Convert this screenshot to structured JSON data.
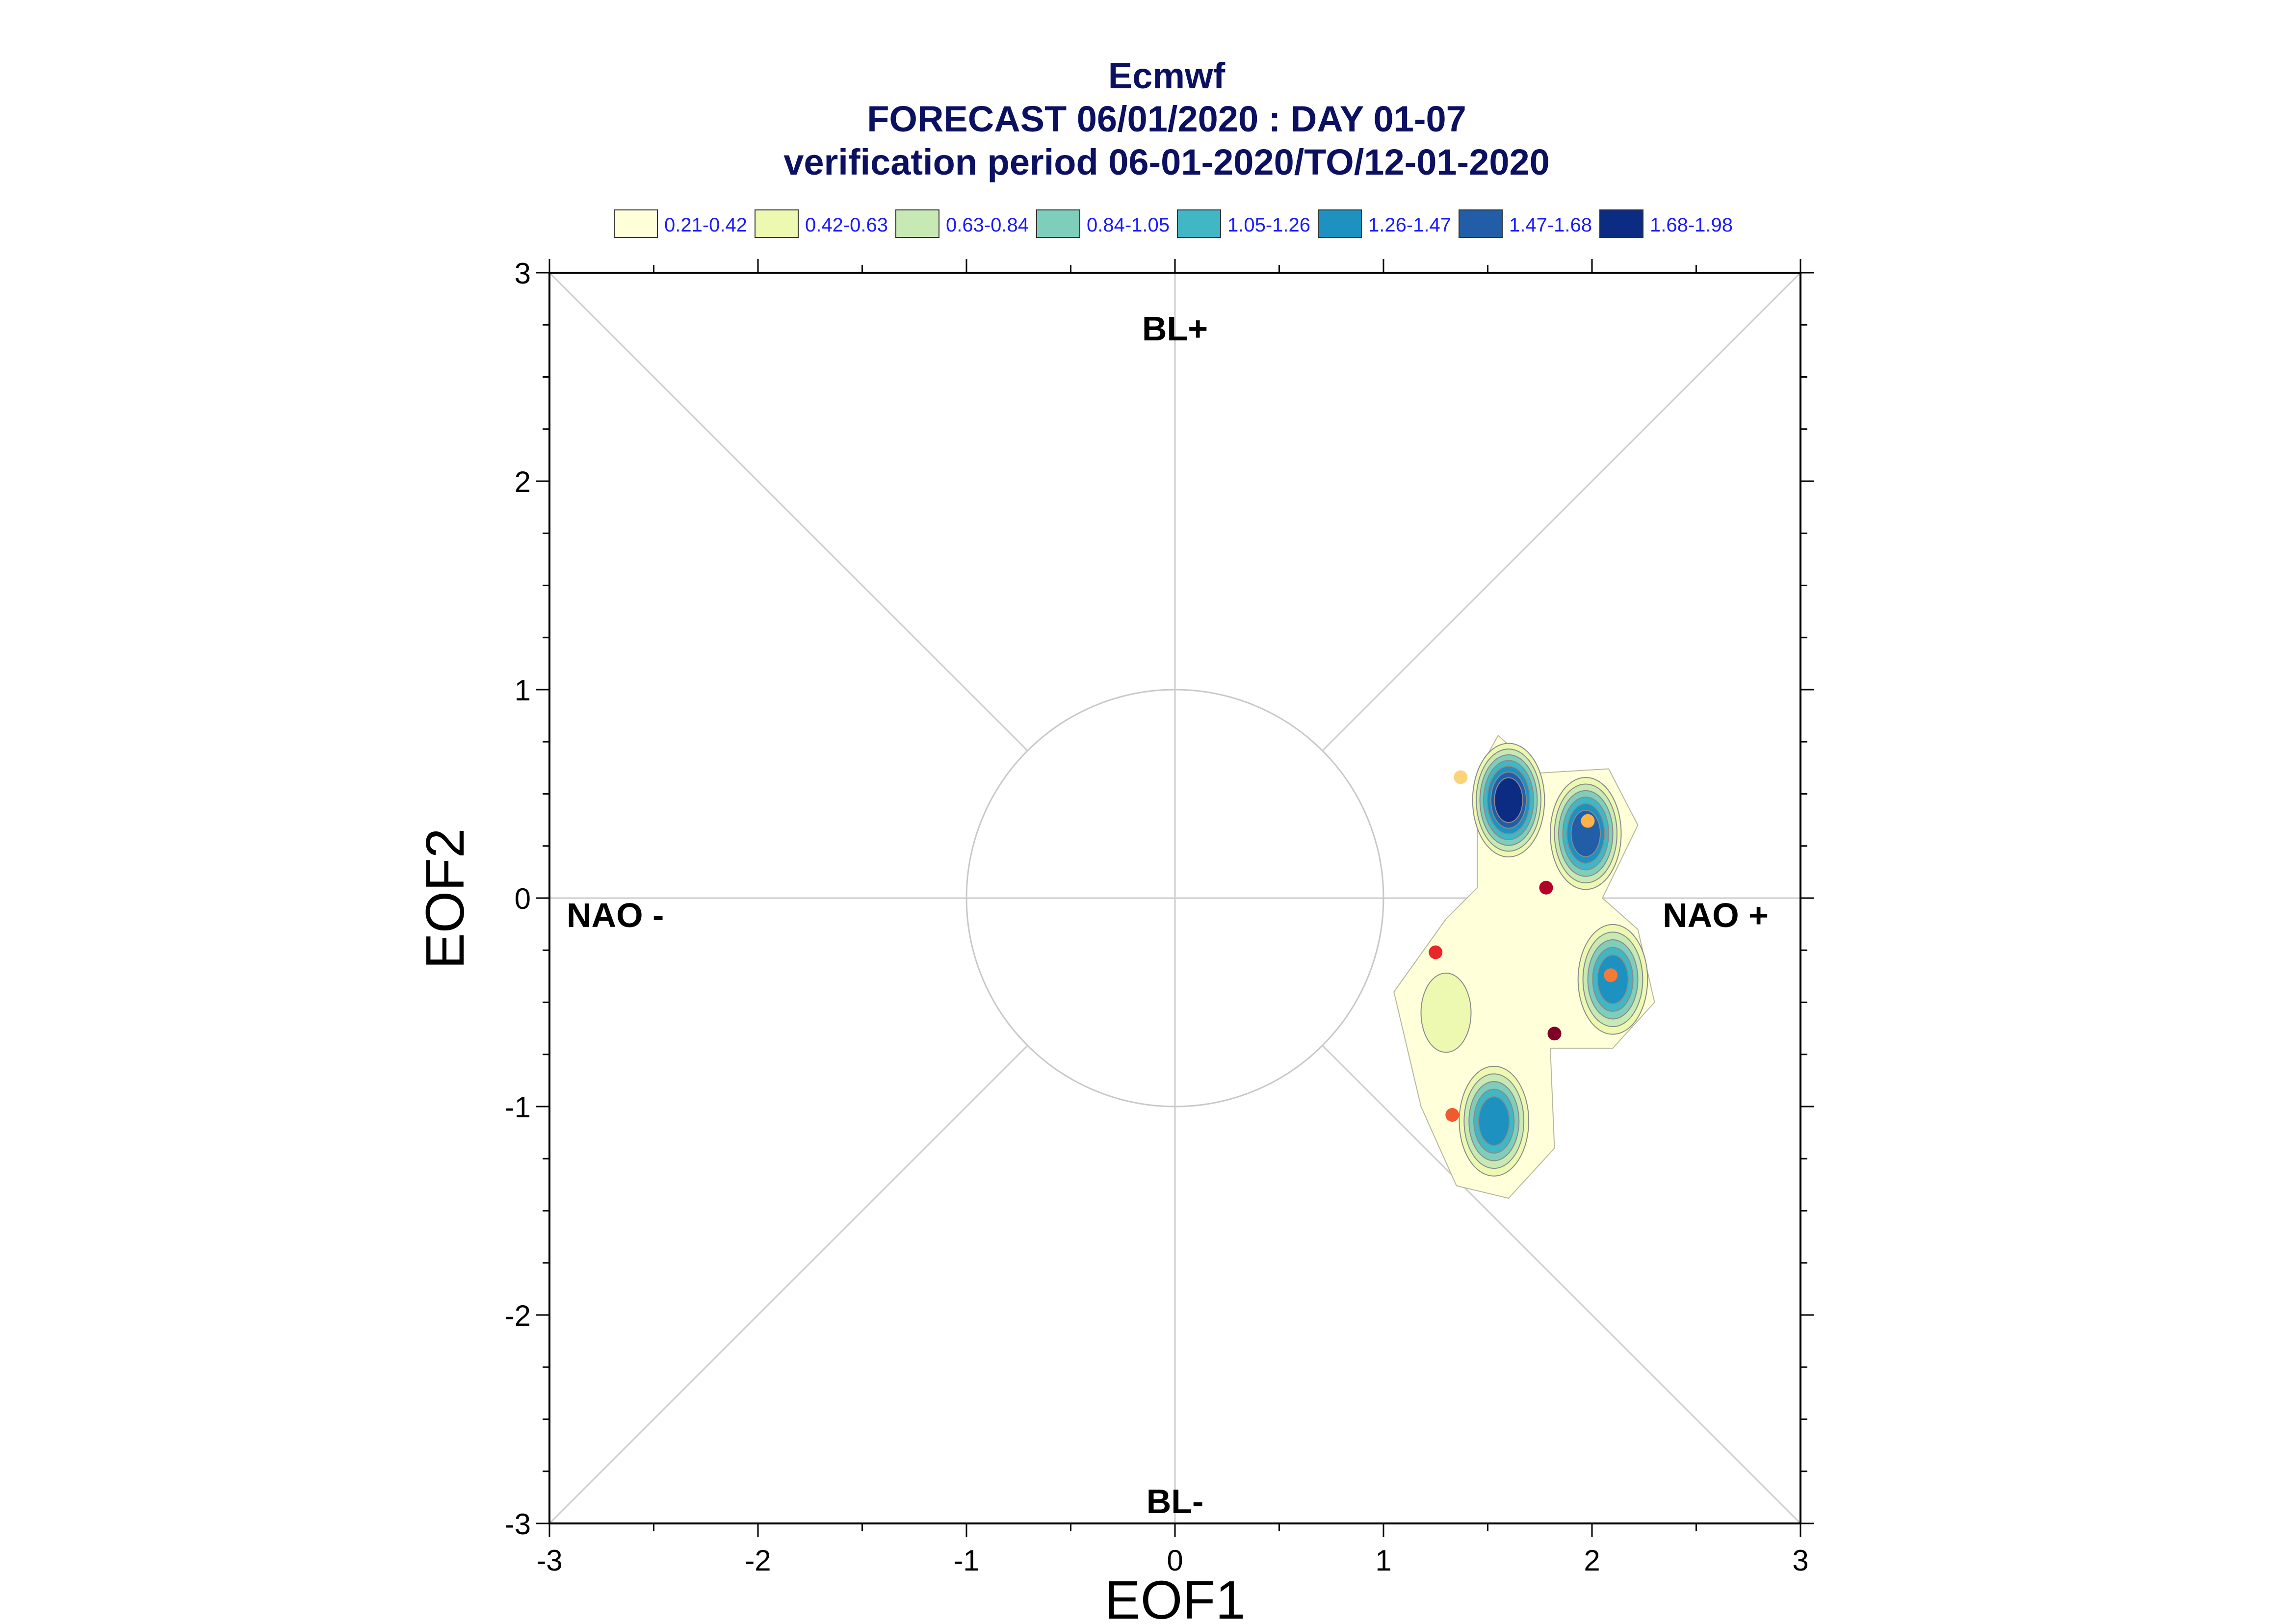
{
  "chart_data": {
    "type": "scatter",
    "title": "Ecmwf",
    "subtitle": "FORECAST 06/01/2020 : DAY 01-07",
    "subtitle2": "verification period 06-01-2020/TO/12-01-2020",
    "xlabel": "EOF1",
    "ylabel": "EOF2",
    "xlim": [
      -3,
      3
    ],
    "ylim": [
      -3,
      3
    ],
    "xticks": [
      "-3",
      "-2",
      "-1",
      "0",
      "1",
      "2",
      "3"
    ],
    "yticks": [
      "-3",
      "-2",
      "-1",
      "0",
      "1",
      "2",
      "3"
    ],
    "regions": {
      "top": "BL+",
      "bottom": "BL-",
      "left": "NAO -",
      "right": "NAO +"
    },
    "circle_radius": 1,
    "legend": [
      {
        "label": "0.21-0.42",
        "color": "#ffffd9"
      },
      {
        "label": "0.42-0.63",
        "color": "#edf8b1"
      },
      {
        "label": "0.63-0.84",
        "color": "#c7e9b4"
      },
      {
        "label": "0.84-1.05",
        "color": "#7fcdbb"
      },
      {
        "label": "1.05-1.26",
        "color": "#41b6c4"
      },
      {
        "label": "1.26-1.47",
        "color": "#1d91c0"
      },
      {
        "label": "1.47-1.68",
        "color": "#225ea8"
      },
      {
        "label": "1.68-1.98",
        "color": "#0c2c84"
      }
    ],
    "density_peaks": [
      {
        "x": 1.6,
        "y": 0.47,
        "peak": 1.85
      },
      {
        "x": 1.97,
        "y": 0.31,
        "peak": 1.55
      },
      {
        "x": 2.1,
        "y": -0.39,
        "peak": 1.3
      },
      {
        "x": 1.53,
        "y": -1.07,
        "peak": 1.45
      },
      {
        "x": 1.3,
        "y": -0.55,
        "peak": 0.55
      }
    ],
    "points": [
      {
        "x": 1.37,
        "y": 0.58,
        "color": "#fdd37a"
      },
      {
        "x": 1.98,
        "y": 0.37,
        "color": "#fdb24c"
      },
      {
        "x": 1.78,
        "y": 0.05,
        "color": "#b30026"
      },
      {
        "x": 1.25,
        "y": -0.26,
        "color": "#e8272b"
      },
      {
        "x": 2.09,
        "y": -0.37,
        "color": "#f57a36"
      },
      {
        "x": 1.82,
        "y": -0.65,
        "color": "#800026"
      },
      {
        "x": 1.33,
        "y": -1.04,
        "color": "#f05a2e"
      }
    ]
  }
}
